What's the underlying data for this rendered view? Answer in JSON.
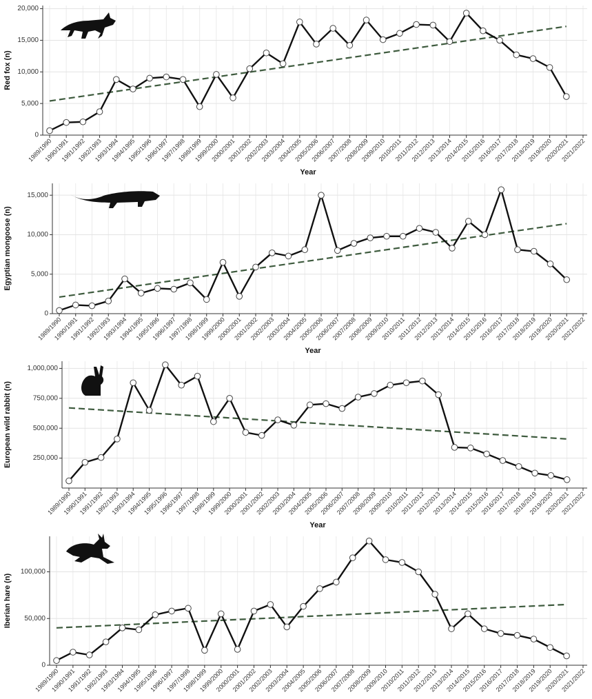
{
  "chart_data": [
    {
      "type": "line",
      "ylabel": "Red fox (n)",
      "xlabel": "Year",
      "categories": [
        "1989/1990",
        "1990/1991",
        "1991/1992",
        "1992/1993",
        "1993/1994",
        "1994/1995",
        "1995/1996",
        "1996/1997",
        "1997/1998",
        "1998/1999",
        "1999/2000",
        "2000/2001",
        "2001/2002",
        "2002/2003",
        "2003/2004",
        "2004/2005",
        "2005/2006",
        "2006/2007",
        "2007/2008",
        "2008/2009",
        "2009/2010",
        "2010/2011",
        "2011/2012",
        "2012/2013",
        "2013/2014",
        "2014/2015",
        "2015/2016",
        "2016/2017",
        "2017/2018",
        "2018/2019",
        "2019/2020",
        "2020/2021",
        "2021/2022"
      ],
      "series": [
        {
          "color": "#111111",
          "values": [
            700,
            2000,
            2100,
            3700,
            8800,
            7300,
            9000,
            9200,
            8800,
            4500,
            9600,
            5900,
            10500,
            13000,
            11300,
            17900,
            14400,
            16900,
            14200,
            18200,
            15100,
            16100,
            17500,
            17400,
            14800,
            19300,
            16500,
            15000,
            12700,
            12100,
            10700,
            6100,
            null
          ]
        }
      ],
      "trend": [
        5400,
        17200
      ],
      "trend_color": "#3d5a3d",
      "ylim": [
        0,
        20500
      ],
      "yticks": [
        0,
        {
          "value": 5000,
          "label": "5,000"
        },
        {
          "value": 10000,
          "label": "10,000"
        },
        {
          "value": 15000,
          "label": "15,000"
        },
        {
          "value": 20000,
          "label": "20,000"
        }
      ],
      "grid": true
    },
    {
      "type": "line",
      "ylabel": "Egyptian mongoose (n)",
      "xlabel": "Year",
      "categories": [
        "1989/1990",
        "1990/1991",
        "1991/1992",
        "1992/1993",
        "1993/1994",
        "1994/1995",
        "1995/1996",
        "1996/1997",
        "1997/1998",
        "1998/1999",
        "1999/2000",
        "2000/2001",
        "2001/2002",
        "2002/2003",
        "2003/2004",
        "2004/2005",
        "2005/2006",
        "2006/2007",
        "2007/2008",
        "2008/2009",
        "2009/2010",
        "2010/2011",
        "2011/2012",
        "2012/2013",
        "2013/2014",
        "2014/2015",
        "2015/2016",
        "2016/2017",
        "2017/2018",
        "2018/2019",
        "2019/2020",
        "2020/2021",
        "2021/2022"
      ],
      "series": [
        {
          "color": "#111111",
          "values": [
            400,
            1100,
            1000,
            1600,
            4400,
            2600,
            3200,
            3100,
            3900,
            1800,
            6500,
            2200,
            5900,
            7700,
            7300,
            8100,
            15000,
            8000,
            8900,
            9600,
            9800,
            9800,
            10800,
            10300,
            8300,
            11700,
            10000,
            15700,
            8100,
            7900,
            6300,
            4300,
            null
          ]
        }
      ],
      "trend": [
        2100,
        11400
      ],
      "trend_color": "#3d5a3d",
      "ylim": [
        0,
        16500
      ],
      "yticks": [
        0,
        {
          "value": 5000,
          "label": "5,000"
        },
        {
          "value": 10000,
          "label": "10,000"
        },
        {
          "value": 15000,
          "label": "15,000"
        }
      ],
      "grid": true
    },
    {
      "type": "line",
      "ylabel": "European wild rabbit (n)",
      "xlabel": "Year",
      "categories": [
        "1989/1990",
        "1990/1991",
        "1991/1992",
        "1992/1993",
        "1993/1994",
        "1994/1995",
        "1995/1996",
        "1996/1997",
        "1997/1998",
        "1998/1999",
        "1999/2000",
        "2000/2001",
        "2001/2002",
        "2002/2003",
        "2003/2004",
        "2004/2005",
        "2005/2006",
        "2006/2007",
        "2007/2008",
        "2008/2009",
        "2009/2010",
        "2010/2011",
        "2011/2012",
        "2012/2013",
        "2013/2014",
        "2014/2015",
        "2015/2016",
        "2016/2017",
        "2017/2018",
        "2018/2019",
        "2019/2020",
        "2020/2021",
        "2021/2022"
      ],
      "series": [
        {
          "color": "#111111",
          "values": [
            60000,
            215000,
            255000,
            410000,
            880000,
            650000,
            1030000,
            860000,
            935000,
            555000,
            750000,
            465000,
            440000,
            570000,
            525000,
            695000,
            705000,
            665000,
            760000,
            790000,
            860000,
            880000,
            895000,
            780000,
            340000,
            335000,
            285000,
            230000,
            180000,
            125000,
            105000,
            70000,
            null
          ]
        }
      ],
      "trend": [
        670000,
        410000
      ],
      "trend_color": "#3d5a3d",
      "ylim": [
        0,
        1060000
      ],
      "yticks": [
        {
          "value": 250000,
          "label": "250,000"
        },
        {
          "value": 500000,
          "label": "500,000"
        },
        {
          "value": 750000,
          "label": "750,000"
        },
        {
          "value": 1000000,
          "label": "1,000,000"
        }
      ],
      "grid": true
    },
    {
      "type": "line",
      "ylabel": "Iberian hare (n)",
      "xlabel": "Year",
      "categories": [
        "1989/1990",
        "1990/1991",
        "1991/1992",
        "1992/1993",
        "1993/1994",
        "1994/1995",
        "1995/1996",
        "1996/1997",
        "1997/1998",
        "1998/1999",
        "1999/2000",
        "2000/2001",
        "2001/2002",
        "2002/2003",
        "2003/2004",
        "2004/2005",
        "2005/2006",
        "2006/2007",
        "2007/2008",
        "2008/2009",
        "2009/2010",
        "2010/2011",
        "2011/2012",
        "2012/2013",
        "2013/2014",
        "2014/2015",
        "2015/2016",
        "2016/2017",
        "2017/2018",
        "2018/2019",
        "2019/2020",
        "2020/2021",
        "2021/2022"
      ],
      "series": [
        {
          "color": "#111111",
          "values": [
            5000,
            14000,
            11000,
            25000,
            40000,
            38000,
            54000,
            58000,
            61000,
            16000,
            55000,
            17000,
            58000,
            65000,
            41000,
            63000,
            82000,
            89000,
            115000,
            133000,
            113000,
            110000,
            100000,
            76000,
            39000,
            55000,
            39000,
            34000,
            32000,
            28000,
            19000,
            10000,
            null
          ]
        }
      ],
      "trend": [
        40000,
        65000
      ],
      "trend_color": "#3d5a3d",
      "ylim": [
        0,
        138000
      ],
      "yticks": [
        0,
        {
          "value": 50000,
          "label": "50,000"
        },
        {
          "value": 100000,
          "label": "100,000"
        }
      ],
      "grid": true
    }
  ]
}
